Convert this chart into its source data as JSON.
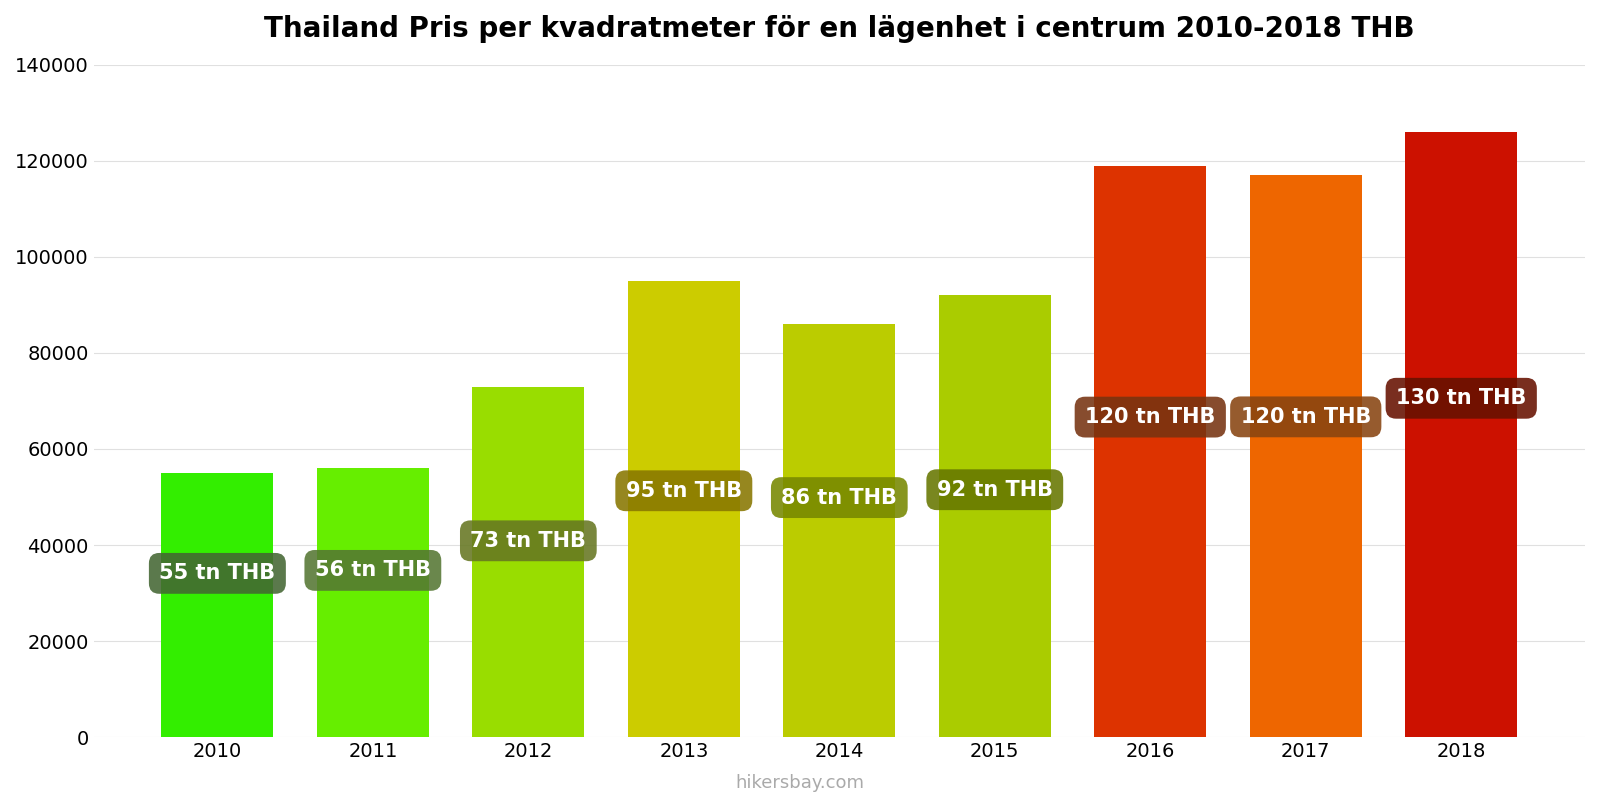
{
  "title": "Thailand Pris per kvadratmeter för en lägenhet i centrum 2010-2018 THB",
  "years": [
    2010,
    2011,
    2012,
    2013,
    2014,
    2015,
    2016,
    2017,
    2018
  ],
  "values": [
    55000,
    56000,
    73000,
    95000,
    86000,
    92000,
    119000,
    117000,
    126000
  ],
  "labels": [
    "55 tn THB",
    "56 tn THB",
    "73 tn THB",
    "95 tn THB",
    "86 tn THB",
    "92 tn THB",
    "120 tn THB",
    "120 tn THB",
    "130 tn THB"
  ],
  "bar_colors": [
    "#33ee00",
    "#66ee00",
    "#99dd00",
    "#cccc00",
    "#bbcc00",
    "#aacc00",
    "#dd3300",
    "#ee6600",
    "#cc1100"
  ],
  "label_box_colors": [
    "#446633",
    "#557733",
    "#667722",
    "#887700",
    "#778800",
    "#667700",
    "#773311",
    "#884411",
    "#661100"
  ],
  "ylim": [
    0,
    140000
  ],
  "yticks": [
    0,
    20000,
    40000,
    60000,
    80000,
    100000,
    120000,
    140000
  ],
  "background_color": "#ffffff",
  "label_text_color": "#ffffff",
  "title_fontsize": 20,
  "tick_fontsize": 14,
  "label_fontsize": 15,
  "watermark": "hikersbay.com",
  "label_y_fractions": [
    0.62,
    0.62,
    0.56,
    0.54,
    0.58,
    0.56,
    0.56,
    0.57,
    0.56
  ]
}
